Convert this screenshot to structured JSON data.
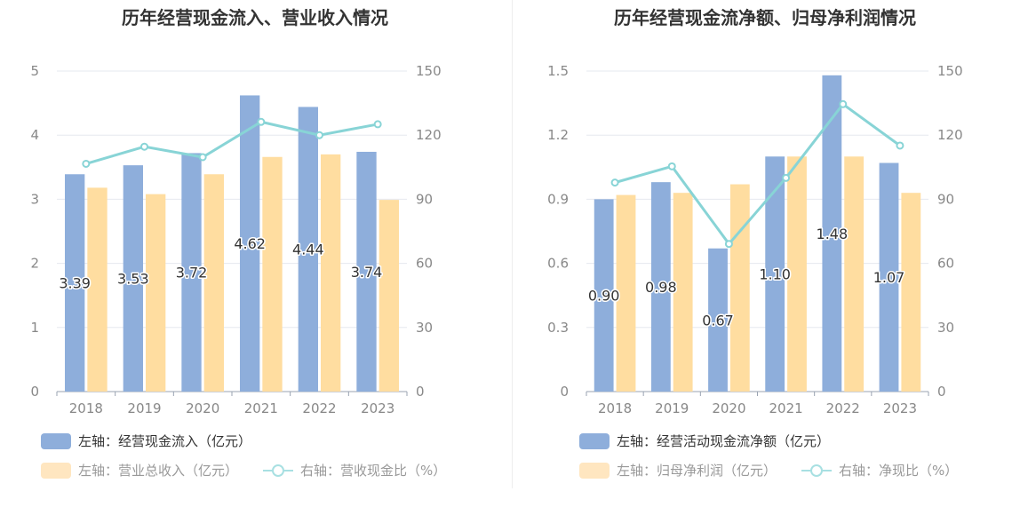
{
  "chart_data": [
    {
      "type": "bar",
      "title": "历年经营现金流入、营业收入情况",
      "categories": [
        "2018",
        "2019",
        "2020",
        "2021",
        "2022",
        "2023"
      ],
      "left_axis": {
        "ylim": [
          0,
          5
        ],
        "ticks": [
          "0",
          "1",
          "2",
          "3",
          "4",
          "5"
        ]
      },
      "right_axis": {
        "ylim": [
          0,
          150
        ],
        "ticks": [
          "0",
          "30",
          "60",
          "90",
          "120",
          "150"
        ]
      },
      "series": [
        {
          "name": "左轴：经营现金流入（亿元）",
          "kind": "bar",
          "axis": "left",
          "color": "#8eaedb",
          "values": [
            3.39,
            3.53,
            3.72,
            4.62,
            4.44,
            3.74
          ],
          "labels": [
            "3.39",
            "3.53",
            "3.72",
            "4.62",
            "4.44",
            "3.74"
          ]
        },
        {
          "name": "左轴：营业总收入（亿元）",
          "kind": "bar",
          "axis": "left",
          "color": "#ffdda0",
          "values": [
            3.18,
            3.08,
            3.39,
            3.66,
            3.7,
            2.99
          ]
        },
        {
          "name": "右轴：营收现金比（%）",
          "kind": "line",
          "axis": "right",
          "color": "#88d4d6",
          "values": [
            106.6,
            114.6,
            109.7,
            126.2,
            120.0,
            125.1
          ]
        }
      ],
      "grid": true,
      "legend_position": "bottom-left"
    },
    {
      "type": "bar",
      "title": "历年经营现金流净额、归母净利润情况",
      "categories": [
        "2018",
        "2019",
        "2020",
        "2021",
        "2022",
        "2023"
      ],
      "left_axis": {
        "ylim": [
          0,
          1.5
        ],
        "ticks": [
          "0",
          "0.3",
          "0.6",
          "0.9",
          "1.2",
          "1.5"
        ]
      },
      "right_axis": {
        "ylim": [
          0,
          150
        ],
        "ticks": [
          "0",
          "30",
          "60",
          "90",
          "120",
          "150"
        ]
      },
      "series": [
        {
          "name": "左轴：经营活动现金流净额（亿元）",
          "kind": "bar",
          "axis": "left",
          "color": "#8eaedb",
          "values": [
            0.9,
            0.98,
            0.67,
            1.1,
            1.48,
            1.07
          ],
          "labels": [
            "0.90",
            "0.98",
            "0.67",
            "1.10",
            "1.48",
            "1.07"
          ]
        },
        {
          "name": "左轴：归母净利润（亿元）",
          "kind": "bar",
          "axis": "left",
          "color": "#ffdda0",
          "values": [
            0.92,
            0.93,
            0.97,
            1.1,
            1.1,
            0.93
          ]
        },
        {
          "name": "右轴：净现比（%）",
          "kind": "line",
          "axis": "right",
          "color": "#88d4d6",
          "values": [
            97.8,
            105.4,
            69.1,
            100.0,
            134.5,
            115.1
          ]
        }
      ],
      "grid": true,
      "legend_position": "bottom-left"
    }
  ]
}
